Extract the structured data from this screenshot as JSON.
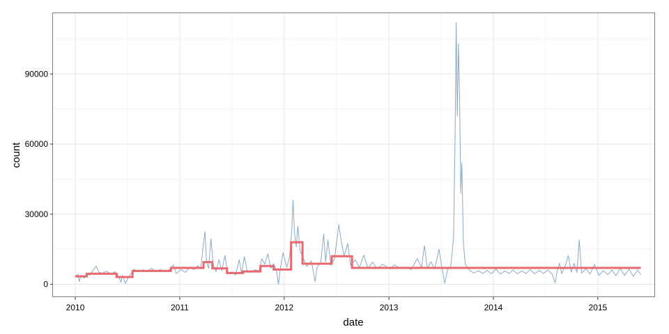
{
  "chart_data": {
    "type": "line",
    "title": "",
    "xlabel": "date",
    "ylabel": "count",
    "x_ticks": [
      "2010",
      "2011",
      "2012",
      "2013",
      "2014",
      "2015"
    ],
    "y_ticks": [
      "0",
      "30000",
      "60000",
      "90000"
    ],
    "y_tick_values": [
      0,
      30000,
      60000,
      90000
    ],
    "xlim": [
      "2009-10-15",
      "2015-07-20"
    ],
    "ylim": [
      -5500,
      116000
    ],
    "grid": true,
    "colors": {
      "raw": "#8aa9c6",
      "smoothed": "#e8686e",
      "grid": "#e6e6e6",
      "border": "#7f7f7f"
    },
    "series": [
      {
        "key": "raw",
        "points": [
          [
            "2010-01-01",
            3200
          ],
          [
            "2010-01-10",
            4200
          ],
          [
            "2010-01-15",
            1200
          ],
          [
            "2010-01-20",
            3600
          ],
          [
            "2010-02-01",
            2600
          ],
          [
            "2010-02-10",
            4600
          ],
          [
            "2010-02-20",
            3900
          ],
          [
            "2010-03-01",
            5400
          ],
          [
            "2010-03-15",
            7800
          ],
          [
            "2010-03-25",
            5100
          ],
          [
            "2010-04-05",
            4700
          ],
          [
            "2010-04-20",
            5600
          ],
          [
            "2010-05-05",
            4400
          ],
          [
            "2010-05-20",
            5400
          ],
          [
            "2010-06-01",
            3600
          ],
          [
            "2010-06-10",
            900
          ],
          [
            "2010-06-15",
            3800
          ],
          [
            "2010-06-25",
            300
          ],
          [
            "2010-07-05",
            2900
          ],
          [
            "2010-07-15",
            4600
          ],
          [
            "2010-07-25",
            6400
          ],
          [
            "2010-08-10",
            5300
          ],
          [
            "2010-08-25",
            6200
          ],
          [
            "2010-09-10",
            5600
          ],
          [
            "2010-09-25",
            6800
          ],
          [
            "2010-10-10",
            5500
          ],
          [
            "2010-10-25",
            6300
          ],
          [
            "2010-11-10",
            5600
          ],
          [
            "2010-11-25",
            6100
          ],
          [
            "2010-12-10",
            8300
          ],
          [
            "2010-12-20",
            4500
          ],
          [
            "2011-01-05",
            6300
          ],
          [
            "2011-01-20",
            5100
          ],
          [
            "2011-02-05",
            7300
          ],
          [
            "2011-02-20",
            6200
          ],
          [
            "2011-03-05",
            7900
          ],
          [
            "2011-03-15",
            6600
          ],
          [
            "2011-03-25",
            17500
          ],
          [
            "2011-03-30",
            22500
          ],
          [
            "2011-04-05",
            9200
          ],
          [
            "2011-04-12",
            6800
          ],
          [
            "2011-04-20",
            19500
          ],
          [
            "2011-04-28",
            8500
          ],
          [
            "2011-05-08",
            5500
          ],
          [
            "2011-05-18",
            10500
          ],
          [
            "2011-05-28",
            5800
          ],
          [
            "2011-06-08",
            12300
          ],
          [
            "2011-06-18",
            4500
          ],
          [
            "2011-07-01",
            5300
          ],
          [
            "2011-07-15",
            4000
          ],
          [
            "2011-07-28",
            10500
          ],
          [
            "2011-08-05",
            4600
          ],
          [
            "2011-08-15",
            11800
          ],
          [
            "2011-08-25",
            5400
          ],
          [
            "2011-09-05",
            5000
          ],
          [
            "2011-09-20",
            6200
          ],
          [
            "2011-10-05",
            5800
          ],
          [
            "2011-10-15",
            11000
          ],
          [
            "2011-10-25",
            8600
          ],
          [
            "2011-11-05",
            13000
          ],
          [
            "2011-11-15",
            6800
          ],
          [
            "2011-11-25",
            8800
          ],
          [
            "2011-12-05",
            6000
          ],
          [
            "2011-12-12",
            0
          ],
          [
            "2011-12-18",
            6400
          ],
          [
            "2011-12-28",
            13500
          ],
          [
            "2012-01-10",
            7200
          ],
          [
            "2012-01-20",
            12000
          ],
          [
            "2012-01-28",
            24000
          ],
          [
            "2012-02-01",
            36000
          ],
          [
            "2012-02-06",
            22000
          ],
          [
            "2012-02-12",
            16000
          ],
          [
            "2012-02-18",
            25000
          ],
          [
            "2012-02-25",
            14500
          ],
          [
            "2012-03-08",
            11000
          ],
          [
            "2012-03-20",
            7600
          ],
          [
            "2012-04-05",
            10000
          ],
          [
            "2012-04-18",
            1200
          ],
          [
            "2012-04-25",
            7200
          ],
          [
            "2012-05-08",
            9500
          ],
          [
            "2012-05-18",
            21500
          ],
          [
            "2012-05-25",
            9600
          ],
          [
            "2012-06-02",
            19000
          ],
          [
            "2012-06-12",
            8200
          ],
          [
            "2012-06-25",
            11000
          ],
          [
            "2012-07-10",
            25500
          ],
          [
            "2012-07-18",
            19000
          ],
          [
            "2012-07-28",
            12000
          ],
          [
            "2012-08-10",
            17500
          ],
          [
            "2012-08-20",
            8000
          ],
          [
            "2012-09-05",
            10500
          ],
          [
            "2012-09-20",
            7200
          ],
          [
            "2012-10-05",
            12500
          ],
          [
            "2012-10-20",
            6800
          ],
          [
            "2012-11-05",
            9500
          ],
          [
            "2012-11-20",
            6600
          ],
          [
            "2012-12-10",
            8600
          ],
          [
            "2013-01-05",
            6500
          ],
          [
            "2013-01-20",
            8300
          ],
          [
            "2013-02-10",
            6700
          ],
          [
            "2013-03-01",
            7400
          ],
          [
            "2013-03-20",
            6300
          ],
          [
            "2013-04-10",
            11000
          ],
          [
            "2013-04-25",
            7100
          ],
          [
            "2013-05-05",
            16500
          ],
          [
            "2013-05-15",
            7000
          ],
          [
            "2013-05-28",
            9600
          ],
          [
            "2013-06-10",
            6500
          ],
          [
            "2013-06-25",
            15000
          ],
          [
            "2013-07-05",
            7000
          ],
          [
            "2013-07-15",
            500
          ],
          [
            "2013-07-25",
            6300
          ],
          [
            "2013-08-05",
            7500
          ],
          [
            "2013-08-15",
            20000
          ],
          [
            "2013-08-20",
            62000
          ],
          [
            "2013-08-24",
            112000
          ],
          [
            "2013-08-28",
            72000
          ],
          [
            "2013-09-01",
            103000
          ],
          [
            "2013-09-05",
            80000
          ],
          [
            "2013-09-09",
            39000
          ],
          [
            "2013-09-13",
            52000
          ],
          [
            "2013-09-18",
            18000
          ],
          [
            "2013-09-25",
            8500
          ],
          [
            "2013-10-10",
            6000
          ],
          [
            "2013-10-25",
            4800
          ],
          [
            "2013-11-10",
            5800
          ],
          [
            "2013-11-25",
            4600
          ],
          [
            "2013-12-10",
            5900
          ],
          [
            "2013-12-25",
            4500
          ],
          [
            "2014-01-10",
            6500
          ],
          [
            "2014-01-25",
            4400
          ],
          [
            "2014-02-10",
            5700
          ],
          [
            "2014-02-25",
            4600
          ],
          [
            "2014-03-10",
            6100
          ],
          [
            "2014-03-25",
            4500
          ],
          [
            "2014-04-10",
            5700
          ],
          [
            "2014-04-25",
            4600
          ],
          [
            "2014-05-10",
            6300
          ],
          [
            "2014-05-25",
            4500
          ],
          [
            "2014-06-10",
            5900
          ],
          [
            "2014-06-25",
            4600
          ],
          [
            "2014-07-10",
            6100
          ],
          [
            "2014-07-25",
            4400
          ],
          [
            "2014-08-05",
            600
          ],
          [
            "2014-08-12",
            5800
          ],
          [
            "2014-08-20",
            9000
          ],
          [
            "2014-08-28",
            4500
          ],
          [
            "2014-09-10",
            8200
          ],
          [
            "2014-09-20",
            12300
          ],
          [
            "2014-09-30",
            5200
          ],
          [
            "2014-10-10",
            9000
          ],
          [
            "2014-10-20",
            5000
          ],
          [
            "2014-10-28",
            19000
          ],
          [
            "2014-11-05",
            4800
          ],
          [
            "2014-11-20",
            6700
          ],
          [
            "2014-12-05",
            4400
          ],
          [
            "2014-12-20",
            8500
          ],
          [
            "2015-01-05",
            3800
          ],
          [
            "2015-01-20",
            5800
          ],
          [
            "2015-02-05",
            4200
          ],
          [
            "2015-02-20",
            6100
          ],
          [
            "2015-03-05",
            3700
          ],
          [
            "2015-03-20",
            6700
          ],
          [
            "2015-04-05",
            3800
          ],
          [
            "2015-04-20",
            6400
          ],
          [
            "2015-05-05",
            3400
          ],
          [
            "2015-05-20",
            6100
          ],
          [
            "2015-05-31",
            4200
          ]
        ]
      },
      {
        "key": "smoothed",
        "steps": [
          [
            "2010-01-01",
            3400
          ],
          [
            "2010-02-10",
            4500
          ],
          [
            "2010-05-25",
            3100
          ],
          [
            "2010-07-20",
            5700
          ],
          [
            "2010-12-01",
            7000
          ],
          [
            "2011-03-25",
            9500
          ],
          [
            "2011-04-25",
            6800
          ],
          [
            "2011-06-15",
            4800
          ],
          [
            "2011-08-10",
            5500
          ],
          [
            "2011-10-10",
            7800
          ],
          [
            "2011-11-25",
            6300
          ],
          [
            "2012-01-25",
            18000
          ],
          [
            "2012-03-05",
            8800
          ],
          [
            "2012-06-15",
            12000
          ],
          [
            "2012-08-25",
            7000
          ],
          [
            "2015-05-31",
            7000
          ]
        ]
      }
    ]
  }
}
